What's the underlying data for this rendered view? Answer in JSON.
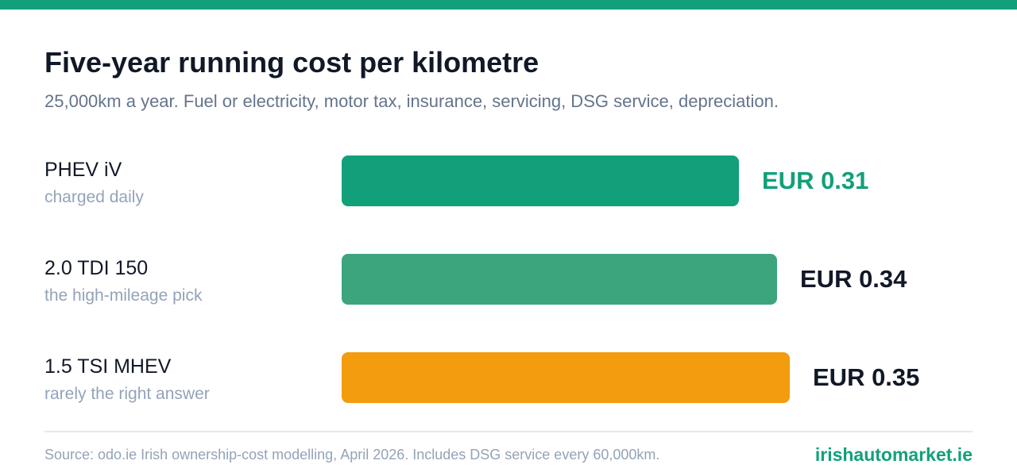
{
  "chart_data": {
    "type": "bar",
    "orientation": "horizontal",
    "title": "Five-year running cost per kilometre",
    "subtitle": "25,000km a year. Fuel or electricity, motor tax, insurance, servicing, DSG service, depreciation.",
    "categories": [
      "PHEV iV",
      "2.0 TDI 150",
      "1.5 TSI MHEV"
    ],
    "category_notes": [
      "charged daily",
      "the high-mileage pick",
      "rarely the right answer"
    ],
    "values": [
      0.31,
      0.34,
      0.35
    ],
    "value_labels": [
      "EUR 0.31",
      "EUR 0.34",
      "EUR 0.35"
    ],
    "bar_colors": [
      "#12a07a",
      "#3ca57e",
      "#f39c0d"
    ],
    "value_label_colors": [
      "#12a07a",
      "#111827",
      "#111827"
    ],
    "xlim": [
      0,
      0.35
    ],
    "grid": false,
    "legend": "none"
  },
  "footer": {
    "source": "Source: odo.ie Irish ownership-cost modelling, April 2026. Includes DSG service every 60,000km.",
    "brand": "irishautomarket.ie"
  },
  "colors": {
    "accent": "#12a07a",
    "title": "#111827",
    "muted": "#94a3b8",
    "subtitle": "#64748b"
  }
}
